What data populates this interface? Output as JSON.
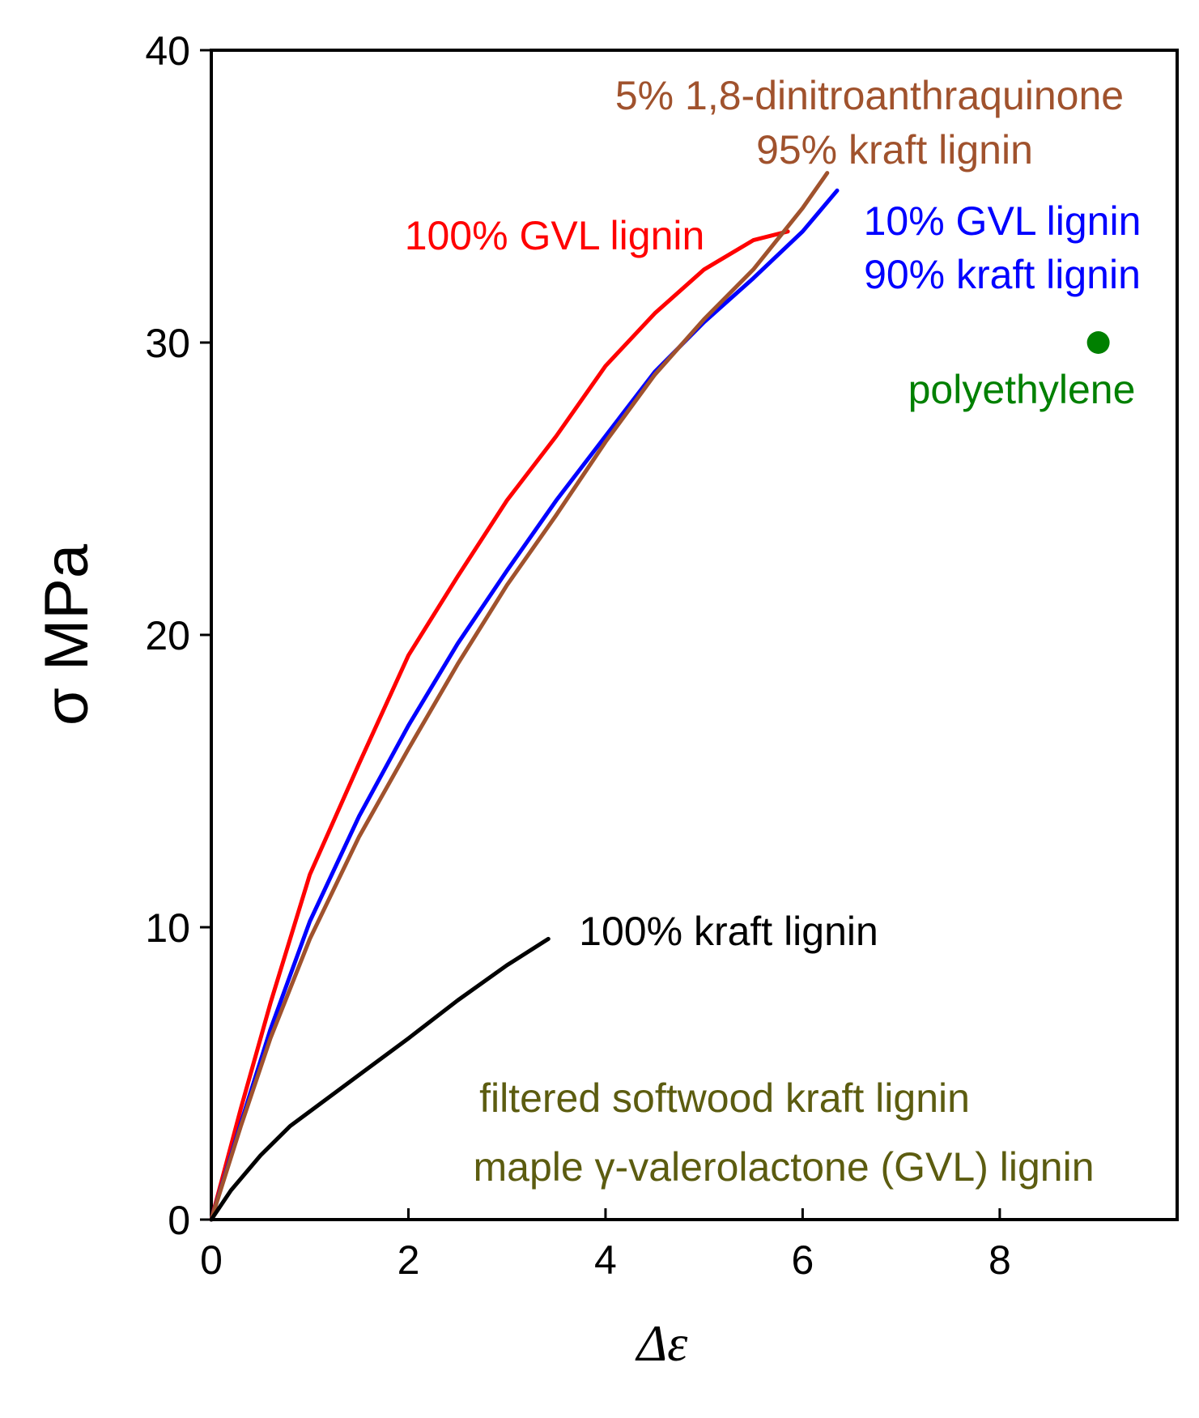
{
  "chart_data": {
    "type": "line",
    "xlabel": "Δε",
    "ylabel": "σ MPa",
    "xlim": [
      0,
      9.8
    ],
    "ylim": [
      0,
      40
    ],
    "xticks": [
      0,
      2,
      4,
      6,
      8
    ],
    "yticks": [
      0,
      10,
      20,
      30,
      40
    ],
    "grid": false,
    "series": [
      {
        "name": "100% GVL lignin",
        "color": "#ff0000",
        "x": [
          0,
          0.3,
          0.6,
          1.0,
          1.5,
          2.0,
          2.5,
          3.0,
          3.5,
          4.0,
          4.5,
          5.0,
          5.5,
          5.85
        ],
        "y": [
          0,
          3.8,
          7.4,
          11.8,
          15.6,
          19.3,
          22.0,
          24.6,
          26.8,
          29.2,
          31.0,
          32.5,
          33.5,
          33.8
        ]
      },
      {
        "name": "10% GVL lignin / 90% kraft lignin",
        "color": "#0000ff",
        "x": [
          0,
          0.3,
          0.6,
          1.0,
          1.5,
          2.0,
          2.5,
          3.0,
          3.5,
          4.0,
          4.5,
          5.0,
          5.5,
          6.0,
          6.35
        ],
        "y": [
          0,
          3.3,
          6.5,
          10.2,
          13.8,
          16.9,
          19.7,
          22.2,
          24.6,
          26.8,
          29.0,
          30.7,
          32.2,
          33.8,
          35.2
        ]
      },
      {
        "name": "5% 1,8-dinitroanthraquinone / 95% kraft lignin",
        "color": "#a0522d",
        "x": [
          0,
          0.3,
          0.6,
          1.0,
          1.5,
          2.0,
          2.5,
          3.0,
          3.5,
          4.0,
          4.5,
          5.0,
          5.5,
          6.0,
          6.25
        ],
        "y": [
          0,
          3.2,
          6.2,
          9.6,
          13.1,
          16.1,
          19.0,
          21.7,
          24.1,
          26.6,
          28.9,
          30.8,
          32.5,
          34.6,
          35.8
        ]
      },
      {
        "name": "100% kraft lignin",
        "color": "#000000",
        "x": [
          0,
          0.2,
          0.5,
          0.8,
          1.2,
          1.6,
          2.0,
          2.5,
          3.0,
          3.42
        ],
        "y": [
          0,
          1.0,
          2.2,
          3.2,
          4.2,
          5.2,
          6.2,
          7.5,
          8.7,
          9.6
        ]
      }
    ],
    "points": [
      {
        "name": "polyethylene",
        "x": 9.0,
        "y": 30.0,
        "color": "#008000"
      }
    ],
    "annotations": [
      {
        "text": "5% 1,8-dinitroanthraquinone",
        "color": "#a0522d"
      },
      {
        "text": "95% kraft lignin",
        "color": "#a0522d"
      },
      {
        "text": "100% GVL lignin",
        "color": "#ff0000"
      },
      {
        "text": "10% GVL lignin",
        "color": "#0000ff"
      },
      {
        "text": "90% kraft lignin",
        "color": "#0000ff"
      },
      {
        "text": "polyethylene",
        "color": "#008000"
      },
      {
        "text": "100% kraft lignin",
        "color": "#000000"
      },
      {
        "text": "filtered softwood kraft lignin",
        "color": "#5c5c10"
      },
      {
        "text": "maple γ-valerolactone (GVL) lignin",
        "color": "#5c5c10"
      }
    ]
  }
}
